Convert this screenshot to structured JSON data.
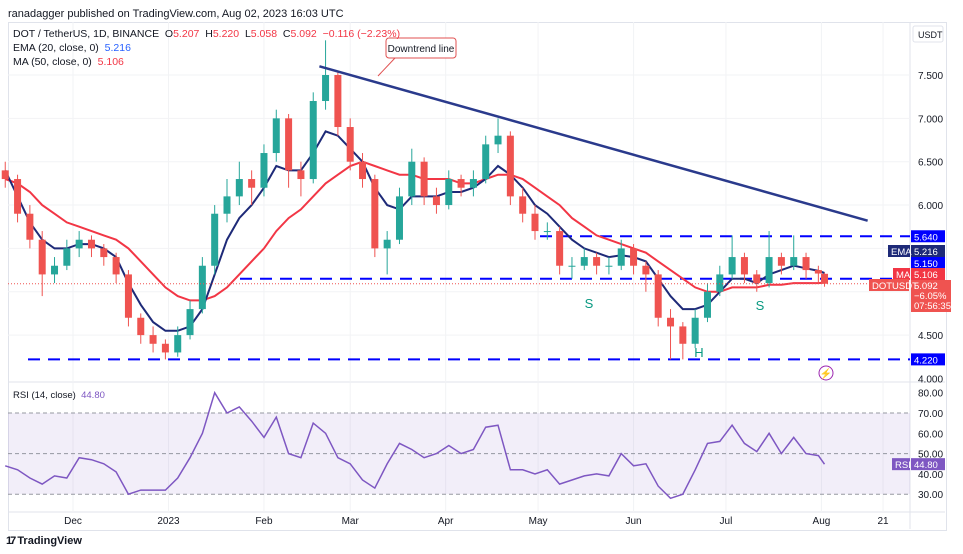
{
  "publisher_line": "ranadagger published on TradingView.com, Aug 02, 2023 16:03 UTC",
  "legend": {
    "symbol": "DOT / TetherUS, 1D, BINANCE",
    "open_label": "O",
    "open": "5.207",
    "high_label": "H",
    "high": "5.220",
    "low_label": "L",
    "low": "5.058",
    "close_label": "C",
    "close": "5.092",
    "change": "−0.116 (−2.23%)",
    "ema_label": "EMA (20, close, 0)",
    "ema_value": "5.216",
    "ma_label": "MA (50, close, 0)",
    "ma_value": "5.106",
    "rsi_label": "RSI (14, close)",
    "rsi_value": "44.80"
  },
  "price_axis": {
    "currency": "USDT",
    "ticks": [
      "7.500",
      "7.000",
      "6.500",
      "6.000",
      "4.500",
      "4.000"
    ],
    "tags": {
      "resistance": "5.640",
      "ema_name": "EMA",
      "ema": "5.216",
      "neckline": "5.150",
      "ma_name": "MA",
      "ma": "5.106",
      "symbol": "DOTUSDT",
      "last": "5.092",
      "last_pct": "−6.05%",
      "countdown": "07:56:35",
      "support": "4.220"
    }
  },
  "rsi_axis": {
    "ticks": [
      "80.00",
      "70.00",
      "60.00",
      "50.00",
      "40.00",
      "30.00"
    ],
    "tag_name": "RSI",
    "tag_value": "44.80"
  },
  "time_axis": [
    "Dec",
    "2023",
    "Feb",
    "Mar",
    "Apr",
    "May",
    "Jun",
    "Jul",
    "Aug",
    "21"
  ],
  "annotations": {
    "downtrend_label": "Downtrend line",
    "left_shoulder": "S",
    "head": "H",
    "right_shoulder": "S"
  },
  "colors": {
    "up": "#26a69a",
    "down": "#ef5350",
    "ema": "#1e2a78",
    "ma": "#f23645",
    "levels": "#0000ff",
    "trend": "#2a3a8c",
    "rsi": "#7e57c2"
  },
  "branding": "TradingView",
  "chart_data": [
    {
      "type": "candlestick",
      "title": "DOT / TetherUS, 1D, BINANCE",
      "ylim": [
        4.0,
        7.9
      ],
      "levels": {
        "resistance": 5.64,
        "neckline": 5.15,
        "support": 4.22
      },
      "downtrend_line": [
        [
          "2023-02-19",
          7.6
        ],
        [
          "2023-08-16",
          5.82
        ]
      ],
      "candles": [
        [
          "2022-11-09",
          6.4,
          6.5,
          6.2,
          6.3
        ],
        [
          "2022-11-13",
          6.3,
          6.35,
          5.8,
          5.9
        ],
        [
          "2022-11-17",
          5.9,
          6.0,
          5.5,
          5.6
        ],
        [
          "2022-11-21",
          5.6,
          5.7,
          4.95,
          5.2
        ],
        [
          "2022-11-25",
          5.2,
          5.4,
          5.1,
          5.3
        ],
        [
          "2022-11-29",
          5.3,
          5.6,
          5.25,
          5.5
        ],
        [
          "2022-12-03",
          5.5,
          5.7,
          5.4,
          5.6
        ],
        [
          "2022-12-07",
          5.6,
          5.65,
          5.4,
          5.5
        ],
        [
          "2022-12-11",
          5.5,
          5.55,
          5.3,
          5.4
        ],
        [
          "2022-12-15",
          5.4,
          5.45,
          5.1,
          5.2
        ],
        [
          "2022-12-19",
          5.2,
          5.25,
          4.6,
          4.7
        ],
        [
          "2022-12-23",
          4.7,
          4.75,
          4.4,
          4.5
        ],
        [
          "2022-12-27",
          4.5,
          4.6,
          4.3,
          4.4
        ],
        [
          "2022-12-31",
          4.4,
          4.45,
          4.22,
          4.3
        ],
        [
          "2023-01-04",
          4.3,
          4.6,
          4.25,
          4.5
        ],
        [
          "2023-01-08",
          4.5,
          4.9,
          4.45,
          4.8
        ],
        [
          "2023-01-12",
          4.8,
          5.4,
          4.75,
          5.3
        ],
        [
          "2023-01-16",
          5.3,
          6.0,
          5.2,
          5.9
        ],
        [
          "2023-01-20",
          5.9,
          6.3,
          5.8,
          6.1
        ],
        [
          "2023-01-24",
          6.1,
          6.5,
          6.0,
          6.3
        ],
        [
          "2023-01-28",
          6.3,
          6.4,
          6.0,
          6.2
        ],
        [
          "2023-02-01",
          6.2,
          6.7,
          6.1,
          6.6
        ],
        [
          "2023-02-05",
          6.6,
          7.1,
          6.5,
          7.0
        ],
        [
          "2023-02-09",
          7.0,
          7.05,
          6.2,
          6.4
        ],
        [
          "2023-02-13",
          6.4,
          6.5,
          6.1,
          6.3
        ],
        [
          "2023-02-17",
          6.3,
          7.3,
          6.25,
          7.2
        ],
        [
          "2023-02-21",
          7.2,
          7.9,
          7.1,
          7.5
        ],
        [
          "2023-02-25",
          7.5,
          7.55,
          6.8,
          6.9
        ],
        [
          "2023-03-01",
          6.9,
          7.0,
          6.4,
          6.5
        ],
        [
          "2023-03-05",
          6.5,
          6.6,
          6.2,
          6.3
        ],
        [
          "2023-03-09",
          6.3,
          6.35,
          5.4,
          5.5
        ],
        [
          "2023-03-13",
          5.5,
          5.7,
          5.2,
          5.6
        ],
        [
          "2023-03-17",
          5.6,
          6.2,
          5.55,
          6.1
        ],
        [
          "2023-03-21",
          6.1,
          6.65,
          6.0,
          6.5
        ],
        [
          "2023-03-25",
          6.5,
          6.55,
          6.0,
          6.1
        ],
        [
          "2023-03-29",
          6.1,
          6.2,
          5.9,
          6.0
        ],
        [
          "2023-04-02",
          6.0,
          6.4,
          5.95,
          6.3
        ],
        [
          "2023-04-06",
          6.3,
          6.35,
          6.1,
          6.2
        ],
        [
          "2023-04-10",
          6.2,
          6.4,
          6.1,
          6.3
        ],
        [
          "2023-04-14",
          6.3,
          6.8,
          6.25,
          6.7
        ],
        [
          "2023-04-18",
          6.7,
          7.0,
          6.6,
          6.8
        ],
        [
          "2023-04-22",
          6.8,
          6.85,
          6.0,
          6.1
        ],
        [
          "2023-04-26",
          6.1,
          6.2,
          5.8,
          5.9
        ],
        [
          "2023-04-30",
          5.9,
          6.0,
          5.6,
          5.7
        ],
        [
          "2023-05-04",
          5.7,
          5.8,
          5.6,
          5.7
        ],
        [
          "2023-05-08",
          5.7,
          5.75,
          5.2,
          5.3
        ],
        [
          "2023-05-12",
          5.3,
          5.4,
          5.15,
          5.3
        ],
        [
          "2023-05-16",
          5.3,
          5.5,
          5.25,
          5.4
        ],
        [
          "2023-05-20",
          5.4,
          5.45,
          5.2,
          5.3
        ],
        [
          "2023-05-24",
          5.3,
          5.4,
          5.2,
          5.3
        ],
        [
          "2023-05-28",
          5.3,
          5.6,
          5.25,
          5.5
        ],
        [
          "2023-06-01",
          5.5,
          5.55,
          5.2,
          5.3
        ],
        [
          "2023-06-05",
          5.3,
          5.35,
          5.0,
          5.2
        ],
        [
          "2023-06-09",
          5.2,
          5.25,
          4.6,
          4.7
        ],
        [
          "2023-06-13",
          4.7,
          4.8,
          4.22,
          4.6
        ],
        [
          "2023-06-17",
          4.6,
          4.65,
          4.22,
          4.4
        ],
        [
          "2023-06-21",
          4.4,
          4.8,
          4.35,
          4.7
        ],
        [
          "2023-06-25",
          4.7,
          5.1,
          4.65,
          5.0
        ],
        [
          "2023-06-29",
          5.0,
          5.3,
          4.95,
          5.2
        ],
        [
          "2023-07-03",
          5.2,
          5.65,
          5.15,
          5.4
        ],
        [
          "2023-07-07",
          5.4,
          5.45,
          5.1,
          5.2
        ],
        [
          "2023-07-11",
          5.2,
          5.25,
          5.0,
          5.1
        ],
        [
          "2023-07-15",
          5.1,
          5.7,
          5.05,
          5.4
        ],
        [
          "2023-07-19",
          5.4,
          5.45,
          5.2,
          5.3
        ],
        [
          "2023-07-23",
          5.3,
          5.65,
          5.25,
          5.4
        ],
        [
          "2023-07-27",
          5.4,
          5.45,
          5.15,
          5.25
        ],
        [
          "2023-07-31",
          5.25,
          5.3,
          5.1,
          5.21
        ],
        [
          "2023-08-02",
          5.207,
          5.22,
          5.058,
          5.092
        ]
      ],
      "ema20": [
        6.4,
        6.1,
        5.8,
        5.6,
        5.5,
        5.5,
        5.55,
        5.55,
        5.5,
        5.4,
        5.1,
        4.85,
        4.65,
        4.55,
        4.55,
        4.6,
        4.8,
        5.2,
        5.6,
        5.85,
        6.0,
        6.2,
        6.45,
        6.4,
        6.4,
        6.6,
        6.85,
        6.8,
        6.65,
        6.5,
        6.2,
        6.0,
        5.95,
        6.1,
        6.1,
        6.1,
        6.15,
        6.15,
        6.2,
        6.3,
        6.45,
        6.35,
        6.2,
        6.0,
        5.9,
        5.75,
        5.6,
        5.5,
        5.45,
        5.4,
        5.42,
        5.4,
        5.35,
        5.15,
        4.95,
        4.8,
        4.8,
        4.85,
        5.0,
        5.15,
        5.15,
        5.1,
        5.2,
        5.25,
        5.3,
        5.27,
        5.24,
        5.216
      ],
      "ma50": [
        6.3,
        6.25,
        6.15,
        6.0,
        5.9,
        5.8,
        5.75,
        5.7,
        5.65,
        5.6,
        5.5,
        5.35,
        5.2,
        5.05,
        4.95,
        4.9,
        4.9,
        4.95,
        5.05,
        5.2,
        5.35,
        5.5,
        5.7,
        5.85,
        5.95,
        6.1,
        6.25,
        6.35,
        6.45,
        6.5,
        6.45,
        6.4,
        6.35,
        6.35,
        6.3,
        6.3,
        6.3,
        6.25,
        6.25,
        6.3,
        6.35,
        6.35,
        6.3,
        6.2,
        6.1,
        6.0,
        5.85,
        5.75,
        5.65,
        5.6,
        5.55,
        5.5,
        5.45,
        5.35,
        5.25,
        5.15,
        5.05,
        5.0,
        5.0,
        5.05,
        5.05,
        5.05,
        5.08,
        5.08,
        5.1,
        5.1,
        5.1,
        5.106
      ]
    },
    {
      "type": "line",
      "title": "RSI (14, close)",
      "ylim": [
        22,
        86
      ],
      "bands": [
        30,
        50,
        70
      ],
      "values": [
        44,
        42,
        38,
        35,
        39,
        38,
        48,
        47,
        45,
        41,
        30,
        32,
        32,
        32,
        38,
        48,
        60,
        80,
        70,
        73,
        66,
        58,
        68,
        50,
        48,
        65,
        60,
        48,
        45,
        37,
        33,
        45,
        55,
        52,
        48,
        50,
        54,
        50,
        52,
        63,
        64,
        42,
        42,
        40,
        42,
        35,
        37,
        39,
        40,
        39,
        50,
        44,
        45,
        34,
        28,
        30,
        42,
        55,
        56,
        64,
        55,
        51,
        60,
        50,
        58,
        50,
        49,
        44.8
      ]
    }
  ]
}
